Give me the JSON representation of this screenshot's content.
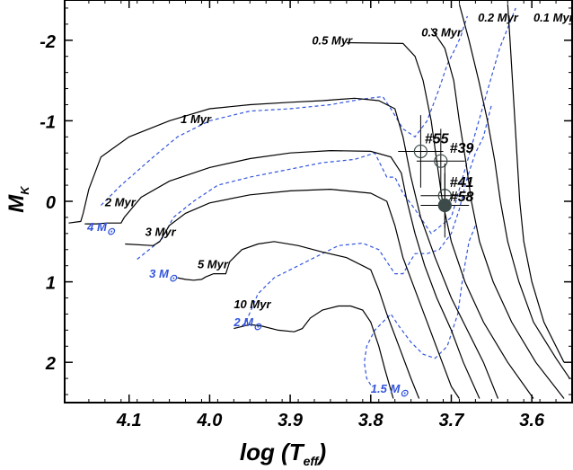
{
  "chart_data": {
    "type": "line",
    "xlabel": {
      "main": "log (T",
      "sub": "eff",
      "close": ")"
    },
    "ylabel": {
      "main": "M",
      "sub": "K"
    },
    "xlim": [
      4.18,
      3.55
    ],
    "ylim": [
      2.5,
      -2.5
    ],
    "x_reversed": true,
    "y_reversed": true,
    "x_ticks": [
      4.1,
      4.0,
      3.9,
      3.8,
      3.7,
      3.6
    ],
    "x_tick_labels": [
      "4.1",
      "4.0",
      "3.9",
      "3.8",
      "3.7",
      "3.6"
    ],
    "y_ticks": [
      -2,
      -1,
      0,
      1,
      2
    ],
    "y_tick_labels": [
      "-2",
      "-1",
      "0",
      "1",
      "2"
    ],
    "colors": {
      "isochrone": "#000000",
      "track": "#3355dd",
      "mass_label": "#3355dd"
    },
    "isochrones": [
      {
        "label": "0.1 Myr",
        "label_at": [
          3.598,
          -2.23
        ],
        "points": [
          [
            3.63,
            -2.45
          ],
          [
            3.627,
            -2.0
          ],
          [
            3.624,
            -1.5
          ],
          [
            3.621,
            -1.0
          ],
          [
            3.618,
            -0.5
          ],
          [
            3.615,
            0.0
          ],
          [
            3.61,
            0.5
          ],
          [
            3.6,
            1.0
          ],
          [
            3.585,
            1.5
          ],
          [
            3.56,
            2.0
          ]
        ]
      },
      {
        "label": "0.2 Myr",
        "label_at": [
          3.667,
          -2.23
        ],
        "points": [
          [
            3.69,
            -2.45
          ],
          [
            3.678,
            -2.0
          ],
          [
            3.666,
            -1.5
          ],
          [
            3.655,
            -1.0
          ],
          [
            3.646,
            -0.5
          ],
          [
            3.639,
            0.0
          ],
          [
            3.63,
            0.5
          ],
          [
            3.616,
            1.0
          ],
          [
            3.598,
            1.5
          ],
          [
            3.57,
            1.95
          ],
          [
            3.553,
            2.2
          ]
        ]
      },
      {
        "label": "0.3 Myr",
        "label_at": [
          3.737,
          -2.05
        ],
        "points": [
          [
            3.725,
            -2.15
          ],
          [
            3.708,
            -1.9
          ],
          [
            3.697,
            -1.5
          ],
          [
            3.69,
            -1.0
          ],
          [
            3.682,
            -0.5
          ],
          [
            3.675,
            0.0
          ],
          [
            3.665,
            0.5
          ],
          [
            3.648,
            1.0
          ],
          [
            3.625,
            1.5
          ],
          [
            3.595,
            2.0
          ],
          [
            3.56,
            2.45
          ]
        ]
      },
      {
        "label": "0.5 Myr",
        "label_at": [
          3.873,
          -1.95
        ],
        "points": [
          [
            3.83,
            -1.97
          ],
          [
            3.76,
            -1.96
          ],
          [
            3.745,
            -1.8
          ],
          [
            3.735,
            -1.5
          ],
          [
            3.725,
            -1.0
          ],
          [
            3.718,
            -0.5
          ],
          [
            3.711,
            0.0
          ],
          [
            3.7,
            0.5
          ],
          [
            3.683,
            1.0
          ],
          [
            3.66,
            1.5
          ],
          [
            3.63,
            2.0
          ],
          [
            3.598,
            2.45
          ]
        ]
      },
      {
        "label": "1 Myr",
        "label_at": [
          4.036,
          -0.97
        ],
        "points": [
          [
            4.175,
            0.27
          ],
          [
            4.16,
            0.25
          ],
          [
            4.157,
            0.15
          ],
          [
            4.15,
            -0.15
          ],
          [
            4.135,
            -0.55
          ],
          [
            4.1,
            -0.8
          ],
          [
            4.05,
            -1.0
          ],
          [
            4.0,
            -1.15
          ],
          [
            3.95,
            -1.2
          ],
          [
            3.9,
            -1.23
          ],
          [
            3.86,
            -1.25
          ],
          [
            3.82,
            -1.28
          ],
          [
            3.79,
            -1.25
          ],
          [
            3.77,
            -1.15
          ],
          [
            3.76,
            -0.8
          ],
          [
            3.75,
            -0.3
          ],
          [
            3.738,
            0.2
          ],
          [
            3.72,
            0.7
          ],
          [
            3.7,
            1.2
          ],
          [
            3.68,
            1.6
          ],
          [
            3.66,
            2.0
          ],
          [
            3.642,
            2.45
          ]
        ]
      },
      {
        "label": "2 Myr",
        "label_at": [
          4.13,
          0.06
        ],
        "points": [
          [
            4.155,
            0.28
          ],
          [
            4.14,
            0.28
          ],
          [
            4.128,
            0.27
          ],
          [
            4.11,
            0.27
          ],
          [
            4.106,
            0.2
          ],
          [
            4.085,
            -0.05
          ],
          [
            4.05,
            -0.25
          ],
          [
            4.0,
            -0.42
          ],
          [
            3.95,
            -0.53
          ],
          [
            3.9,
            -0.6
          ],
          [
            3.85,
            -0.63
          ],
          [
            3.8,
            -0.62
          ],
          [
            3.775,
            -0.55
          ],
          [
            3.762,
            -0.35
          ],
          [
            3.755,
            0.0
          ],
          [
            3.745,
            0.4
          ],
          [
            3.733,
            0.8
          ],
          [
            3.718,
            1.2
          ],
          [
            3.7,
            1.6
          ],
          [
            3.685,
            2.0
          ],
          [
            3.665,
            2.45
          ]
        ]
      },
      {
        "label": "3 Myr",
        "label_at": [
          4.08,
          0.43
        ],
        "points": [
          [
            4.105,
            0.53
          ],
          [
            4.07,
            0.55
          ],
          [
            4.062,
            0.5
          ],
          [
            4.05,
            0.3
          ],
          [
            4.03,
            0.15
          ],
          [
            4.0,
            0.02
          ],
          [
            3.95,
            -0.08
          ],
          [
            3.9,
            -0.13
          ],
          [
            3.85,
            -0.15
          ],
          [
            3.8,
            -0.1
          ],
          [
            3.78,
            0.0
          ],
          [
            3.77,
            0.3
          ],
          [
            3.76,
            0.7
          ],
          [
            3.745,
            1.1
          ],
          [
            3.73,
            1.5
          ],
          [
            3.715,
            1.9
          ],
          [
            3.7,
            2.3
          ],
          [
            3.69,
            2.45
          ]
        ]
      },
      {
        "label": "5 Myr",
        "label_at": [
          4.015,
          0.83
        ],
        "points": [
          [
            4.04,
            0.95
          ],
          [
            4.03,
            0.97
          ],
          [
            4.02,
            0.98
          ],
          [
            4.01,
            0.97
          ],
          [
            4.005,
            0.94
          ],
          [
            3.995,
            0.9
          ],
          [
            3.98,
            0.9
          ],
          [
            3.975,
            0.75
          ],
          [
            3.96,
            0.6
          ],
          [
            3.94,
            0.53
          ],
          [
            3.92,
            0.5
          ],
          [
            3.89,
            0.55
          ],
          [
            3.86,
            0.63
          ],
          [
            3.83,
            0.7
          ],
          [
            3.8,
            0.85
          ],
          [
            3.79,
            1.1
          ],
          [
            3.78,
            1.4
          ],
          [
            3.765,
            1.8
          ],
          [
            3.75,
            2.2
          ],
          [
            3.74,
            2.45
          ]
        ]
      },
      {
        "label": "10 Myr",
        "label_at": [
          3.97,
          1.33
        ],
        "points": [
          [
            3.97,
            1.58
          ],
          [
            3.958,
            1.55
          ],
          [
            3.95,
            1.53
          ],
          [
            3.935,
            1.55
          ],
          [
            3.915,
            1.6
          ],
          [
            3.895,
            1.62
          ],
          [
            3.885,
            1.58
          ],
          [
            3.875,
            1.45
          ],
          [
            3.86,
            1.35
          ],
          [
            3.84,
            1.3
          ],
          [
            3.825,
            1.3
          ],
          [
            3.81,
            1.35
          ],
          [
            3.8,
            1.5
          ],
          [
            3.79,
            1.8
          ],
          [
            3.782,
            2.1
          ],
          [
            3.772,
            2.45
          ]
        ]
      }
    ],
    "mass_tracks": [
      {
        "label": "4 M",
        "sym": "⊙",
        "label_at": [
          4.152,
          0.37
        ],
        "points": [
          [
            4.135,
            0.05
          ],
          [
            4.11,
            -0.2
          ],
          [
            4.07,
            -0.55
          ],
          [
            4.04,
            -0.8
          ],
          [
            4.0,
            -1.0
          ],
          [
            3.95,
            -1.12
          ],
          [
            3.9,
            -1.15
          ],
          [
            3.85,
            -1.2
          ],
          [
            3.81,
            -1.27
          ],
          [
            3.785,
            -1.3
          ],
          [
            3.775,
            -1.15
          ],
          [
            3.76,
            -0.9
          ],
          [
            3.745,
            -0.8
          ],
          [
            3.73,
            -1.0
          ],
          [
            3.715,
            -1.4
          ],
          [
            3.705,
            -1.7
          ],
          [
            3.695,
            -1.9
          ],
          [
            3.688,
            -2.05
          ],
          [
            3.685,
            -2.15
          ],
          [
            3.68,
            -2.3
          ]
        ]
      },
      {
        "label": "3 M",
        "sym": "⊙",
        "label_at": [
          4.075,
          0.95
        ],
        "points": [
          [
            4.09,
            0.72
          ],
          [
            4.06,
            0.48
          ],
          [
            4.045,
            0.2
          ],
          [
            4.02,
            0.0
          ],
          [
            3.99,
            -0.2
          ],
          [
            3.95,
            -0.3
          ],
          [
            3.9,
            -0.4
          ],
          [
            3.86,
            -0.48
          ],
          [
            3.82,
            -0.52
          ],
          [
            3.795,
            -0.6
          ],
          [
            3.79,
            -0.5
          ],
          [
            3.78,
            -0.3
          ],
          [
            3.77,
            -0.3
          ],
          [
            3.76,
            -0.1
          ],
          [
            3.745,
            0.1
          ],
          [
            3.725,
            0.4
          ],
          [
            3.7,
            0.2
          ],
          [
            3.68,
            -0.5
          ],
          [
            3.66,
            -1.2
          ],
          [
            3.64,
            -1.9
          ],
          [
            3.62,
            -2.4
          ]
        ]
      },
      {
        "label": "2 M",
        "sym": "⊙",
        "label_at": [
          3.97,
          1.55
        ],
        "points": [
          [
            3.96,
            1.55
          ],
          [
            3.955,
            1.5
          ],
          [
            3.94,
            1.15
          ],
          [
            3.92,
            0.95
          ],
          [
            3.9,
            0.85
          ],
          [
            3.87,
            0.7
          ],
          [
            3.84,
            0.55
          ],
          [
            3.81,
            0.52
          ],
          [
            3.79,
            0.6
          ],
          [
            3.78,
            0.75
          ],
          [
            3.77,
            0.9
          ],
          [
            3.76,
            0.9
          ],
          [
            3.745,
            0.65
          ],
          [
            3.73,
            0.65
          ],
          [
            3.715,
            0.6
          ],
          [
            3.7,
            0.4
          ],
          [
            3.69,
            0.1
          ],
          [
            3.68,
            -0.3
          ],
          [
            3.67,
            -0.6
          ],
          [
            3.66,
            -0.8
          ],
          [
            3.65,
            -1.2
          ]
        ]
      },
      {
        "label": "1.5 M",
        "sym": "⊙",
        "label_at": [
          3.8,
          2.38
        ],
        "points": [
          [
            3.8,
            2.28
          ],
          [
            3.805,
            2.2
          ],
          [
            3.808,
            2.0
          ],
          [
            3.805,
            1.8
          ],
          [
            3.795,
            1.6
          ],
          [
            3.785,
            1.5
          ],
          [
            3.775,
            1.4
          ],
          [
            3.765,
            1.55
          ],
          [
            3.75,
            1.75
          ],
          [
            3.735,
            1.9
          ],
          [
            3.72,
            1.95
          ],
          [
            3.705,
            1.8
          ],
          [
            3.692,
            1.4
          ],
          [
            3.685,
            0.9
          ],
          [
            3.678,
            0.5
          ],
          [
            3.67,
            0.3
          ]
        ]
      }
    ],
    "stars": [
      {
        "id": "#55",
        "x": 3.738,
        "y": -0.62,
        "filled": false,
        "xerr": 0.028,
        "yerr": 0.45,
        "label_at": [
          3.733,
          -0.72
        ]
      },
      {
        "id": "#39",
        "x": 3.713,
        "y": -0.5,
        "filled": false,
        "xerr": 0.03,
        "yerr": 0.4,
        "label_at": [
          3.702,
          -0.6
        ]
      },
      {
        "id": "#41",
        "x": 3.708,
        "y": -0.07,
        "filled": false,
        "xerr": 0.03,
        "yerr": 0.4,
        "label_at": [
          3.702,
          -0.18
        ]
      },
      {
        "id": "#58",
        "x": 3.708,
        "y": 0.05,
        "filled": true,
        "xerr": 0.03,
        "yerr": 0.4,
        "label_at": [
          3.702,
          0.0
        ]
      }
    ]
  }
}
